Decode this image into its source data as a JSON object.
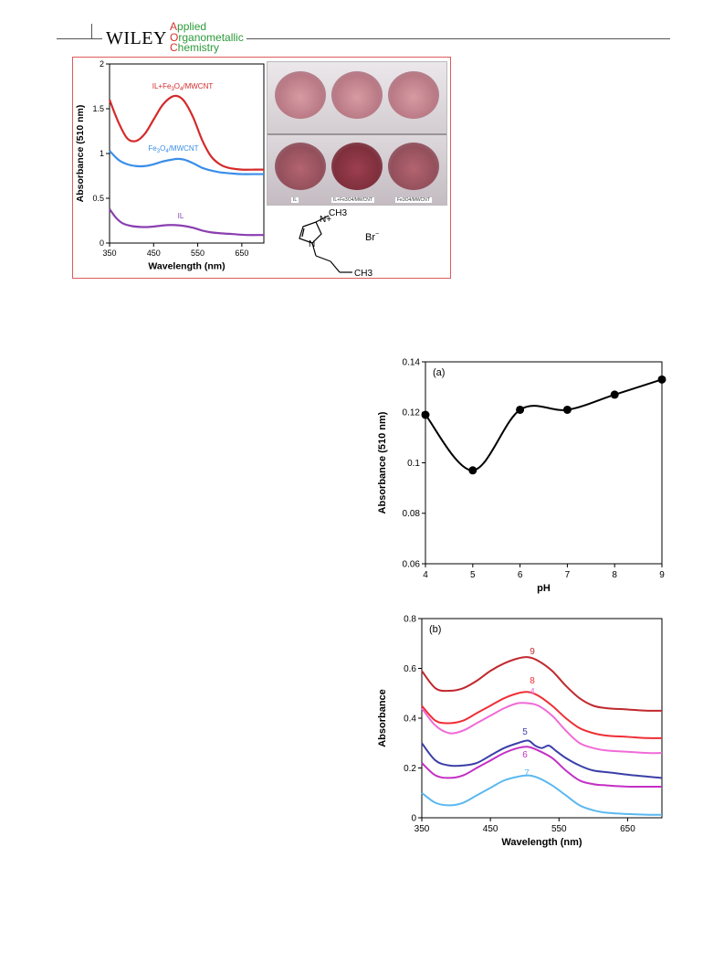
{
  "header": {
    "brand": "WILEY",
    "journal_lines": [
      {
        "cap": "A",
        "rest": "pplied"
      },
      {
        "cap": "O",
        "rest": "rganometallic"
      },
      {
        "cap": "C",
        "rest": "hemistry"
      }
    ]
  },
  "photo": {
    "labels": [
      "IL",
      "IL+Fe3O4/MWCNT",
      "Fe3O4/MWCNT"
    ]
  },
  "structure": {
    "methyl": "CH3",
    "n_plus": "N+",
    "n": "N",
    "ch3_tail": "CH3",
    "counterion": "Br"
  },
  "chart_data": [
    {
      "id": "top",
      "type": "line",
      "xlabel": "Wavelength (nm)",
      "ylabel": "Absorbance (510 nm)",
      "xlim": [
        350,
        700
      ],
      "ylim": [
        0,
        2
      ],
      "xticks": [
        350,
        450,
        550,
        650
      ],
      "yticks": [
        0,
        0.5,
        1,
        1.5,
        2
      ],
      "ytick_labels": [
        "0",
        "0.5",
        "1",
        "1.5",
        "2"
      ],
      "series": [
        {
          "name": "IL+Fe3O4/MWCNT",
          "color": "#d42a2a",
          "x": [
            350,
            370,
            390,
            410,
            430,
            450,
            470,
            490,
            505,
            520,
            540,
            560,
            580,
            600,
            620,
            650,
            680,
            700
          ],
          "y": [
            1.6,
            1.35,
            1.17,
            1.14,
            1.22,
            1.38,
            1.54,
            1.63,
            1.64,
            1.58,
            1.4,
            1.15,
            0.97,
            0.88,
            0.84,
            0.82,
            0.82,
            0.82
          ]
        },
        {
          "name": "Fe3O4/MWCNT",
          "color": "#3a8ee8",
          "x": [
            350,
            370,
            390,
            410,
            430,
            450,
            470,
            490,
            505,
            520,
            540,
            560,
            580,
            600,
            620,
            650,
            680,
            700
          ],
          "y": [
            1.03,
            0.93,
            0.88,
            0.86,
            0.86,
            0.88,
            0.91,
            0.93,
            0.94,
            0.93,
            0.89,
            0.84,
            0.81,
            0.79,
            0.78,
            0.77,
            0.77,
            0.77
          ]
        },
        {
          "name": "IL",
          "color": "#8a3fb0",
          "x": [
            350,
            365,
            380,
            400,
            420,
            440,
            460,
            480,
            500,
            520,
            540,
            560,
            580,
            600,
            630,
            660,
            700
          ],
          "y": [
            0.38,
            0.28,
            0.22,
            0.19,
            0.18,
            0.18,
            0.19,
            0.2,
            0.2,
            0.19,
            0.17,
            0.14,
            0.12,
            0.11,
            0.1,
            0.09,
            0.09
          ]
        }
      ]
    },
    {
      "id": "a",
      "type": "line",
      "panel_label": "(a)",
      "xlabel": "pH",
      "ylabel": "Absorbance (510 nm)",
      "xlim": [
        4,
        9
      ],
      "ylim": [
        0.06,
        0.14
      ],
      "xticks": [
        4,
        5,
        6,
        7,
        8,
        9
      ],
      "yticks": [
        0.06,
        0.08,
        0.1,
        0.12,
        0.14
      ],
      "ytick_labels": [
        "0.06",
        "0.08",
        "0.1",
        "0.12",
        "0.14"
      ],
      "series": [
        {
          "color": "#000000",
          "x": [
            4,
            5,
            6,
            7,
            8,
            9
          ],
          "y": [
            0.119,
            0.097,
            0.121,
            0.121,
            0.127,
            0.133
          ]
        }
      ]
    },
    {
      "id": "b",
      "type": "line",
      "panel_label": "(b)",
      "xlabel": "Wavelength (nm)",
      "ylabel": "Absorbance",
      "xlim": [
        350,
        700
      ],
      "ylim": [
        0,
        0.8
      ],
      "xticks": [
        350,
        450,
        550,
        650
      ],
      "yticks": [
        0,
        0.2,
        0.4,
        0.6,
        0.8
      ],
      "ytick_labels": [
        "0",
        "0.2",
        "0.4",
        "0.6",
        "0.8"
      ],
      "series": [
        {
          "name": "9",
          "color": "#c0282d",
          "x": [
            350,
            370,
            390,
            410,
            430,
            450,
            470,
            490,
            505,
            520,
            540,
            560,
            580,
            600,
            620,
            650,
            680,
            700
          ],
          "y": [
            0.59,
            0.52,
            0.51,
            0.52,
            0.55,
            0.59,
            0.62,
            0.64,
            0.645,
            0.63,
            0.59,
            0.53,
            0.48,
            0.45,
            0.44,
            0.435,
            0.43,
            0.43
          ]
        },
        {
          "name": "8",
          "color": "#ef2e35",
          "x": [
            350,
            370,
            390,
            410,
            430,
            450,
            470,
            490,
            505,
            520,
            540,
            560,
            580,
            600,
            620,
            650,
            680,
            700
          ],
          "y": [
            0.45,
            0.39,
            0.38,
            0.39,
            0.42,
            0.45,
            0.48,
            0.5,
            0.505,
            0.49,
            0.45,
            0.4,
            0.36,
            0.34,
            0.33,
            0.325,
            0.32,
            0.32
          ]
        },
        {
          "name": "4",
          "color": "#f06bd8",
          "x": [
            350,
            370,
            390,
            410,
            430,
            450,
            470,
            490,
            505,
            520,
            540,
            560,
            580,
            600,
            620,
            650,
            680,
            700
          ],
          "y": [
            0.44,
            0.37,
            0.34,
            0.35,
            0.38,
            0.41,
            0.44,
            0.46,
            0.46,
            0.45,
            0.41,
            0.35,
            0.3,
            0.28,
            0.27,
            0.265,
            0.26,
            0.26
          ]
        },
        {
          "name": "5",
          "color": "#3b3fa8",
          "x": [
            350,
            370,
            390,
            410,
            430,
            450,
            470,
            490,
            505,
            515,
            525,
            535,
            545,
            560,
            580,
            600,
            630,
            660,
            700
          ],
          "y": [
            0.3,
            0.23,
            0.21,
            0.21,
            0.22,
            0.25,
            0.28,
            0.3,
            0.31,
            0.29,
            0.28,
            0.29,
            0.27,
            0.24,
            0.21,
            0.19,
            0.18,
            0.17,
            0.16
          ]
        },
        {
          "name": "6",
          "color": "#c42fc4",
          "x": [
            350,
            370,
            390,
            410,
            430,
            450,
            470,
            490,
            505,
            520,
            540,
            560,
            580,
            600,
            620,
            650,
            680,
            700
          ],
          "y": [
            0.22,
            0.17,
            0.16,
            0.17,
            0.2,
            0.23,
            0.26,
            0.28,
            0.285,
            0.27,
            0.24,
            0.19,
            0.15,
            0.135,
            0.13,
            0.125,
            0.125,
            0.125
          ]
        },
        {
          "name": "7",
          "color": "#5bb8f0",
          "x": [
            350,
            370,
            390,
            410,
            430,
            450,
            470,
            490,
            505,
            520,
            540,
            560,
            580,
            600,
            620,
            650,
            680,
            700
          ],
          "y": [
            0.1,
            0.06,
            0.05,
            0.06,
            0.09,
            0.12,
            0.15,
            0.165,
            0.17,
            0.16,
            0.13,
            0.09,
            0.05,
            0.03,
            0.02,
            0.015,
            0.012,
            0.012
          ]
        }
      ]
    }
  ]
}
